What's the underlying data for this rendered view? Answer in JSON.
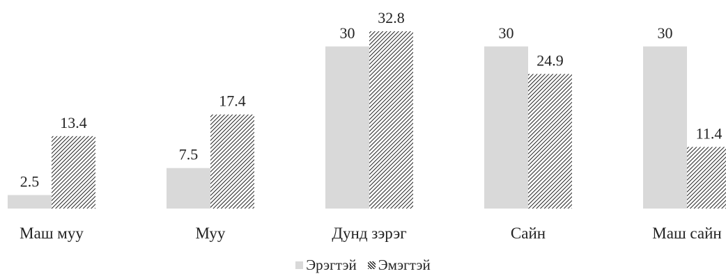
{
  "chart_data": {
    "type": "bar",
    "title": "",
    "xlabel": "",
    "ylabel": "",
    "categories": [
      "Маш муу",
      "Муу",
      "Дунд зэрэг",
      "Сайн",
      "Маш сайн"
    ],
    "series": [
      {
        "name": "Эрэгтэй",
        "values": [
          2.5,
          7.5,
          30,
          30,
          30
        ],
        "color": "#d9d9d9",
        "pattern": "solid"
      },
      {
        "name": "Эмэгтэй",
        "values": [
          13.4,
          17.4,
          32.8,
          24.9,
          11.4
        ],
        "color": "#222222",
        "pattern": "diagonal-hatch"
      }
    ],
    "value_labels": [
      [
        "2.5",
        "7.5",
        "30",
        "30",
        "30"
      ],
      [
        "13.4",
        "17.4",
        "32.8",
        "24.9",
        "11.4"
      ]
    ],
    "ylim": [
      0,
      33
    ],
    "grid": false,
    "axes_visible": false,
    "legend_position": "bottom"
  }
}
